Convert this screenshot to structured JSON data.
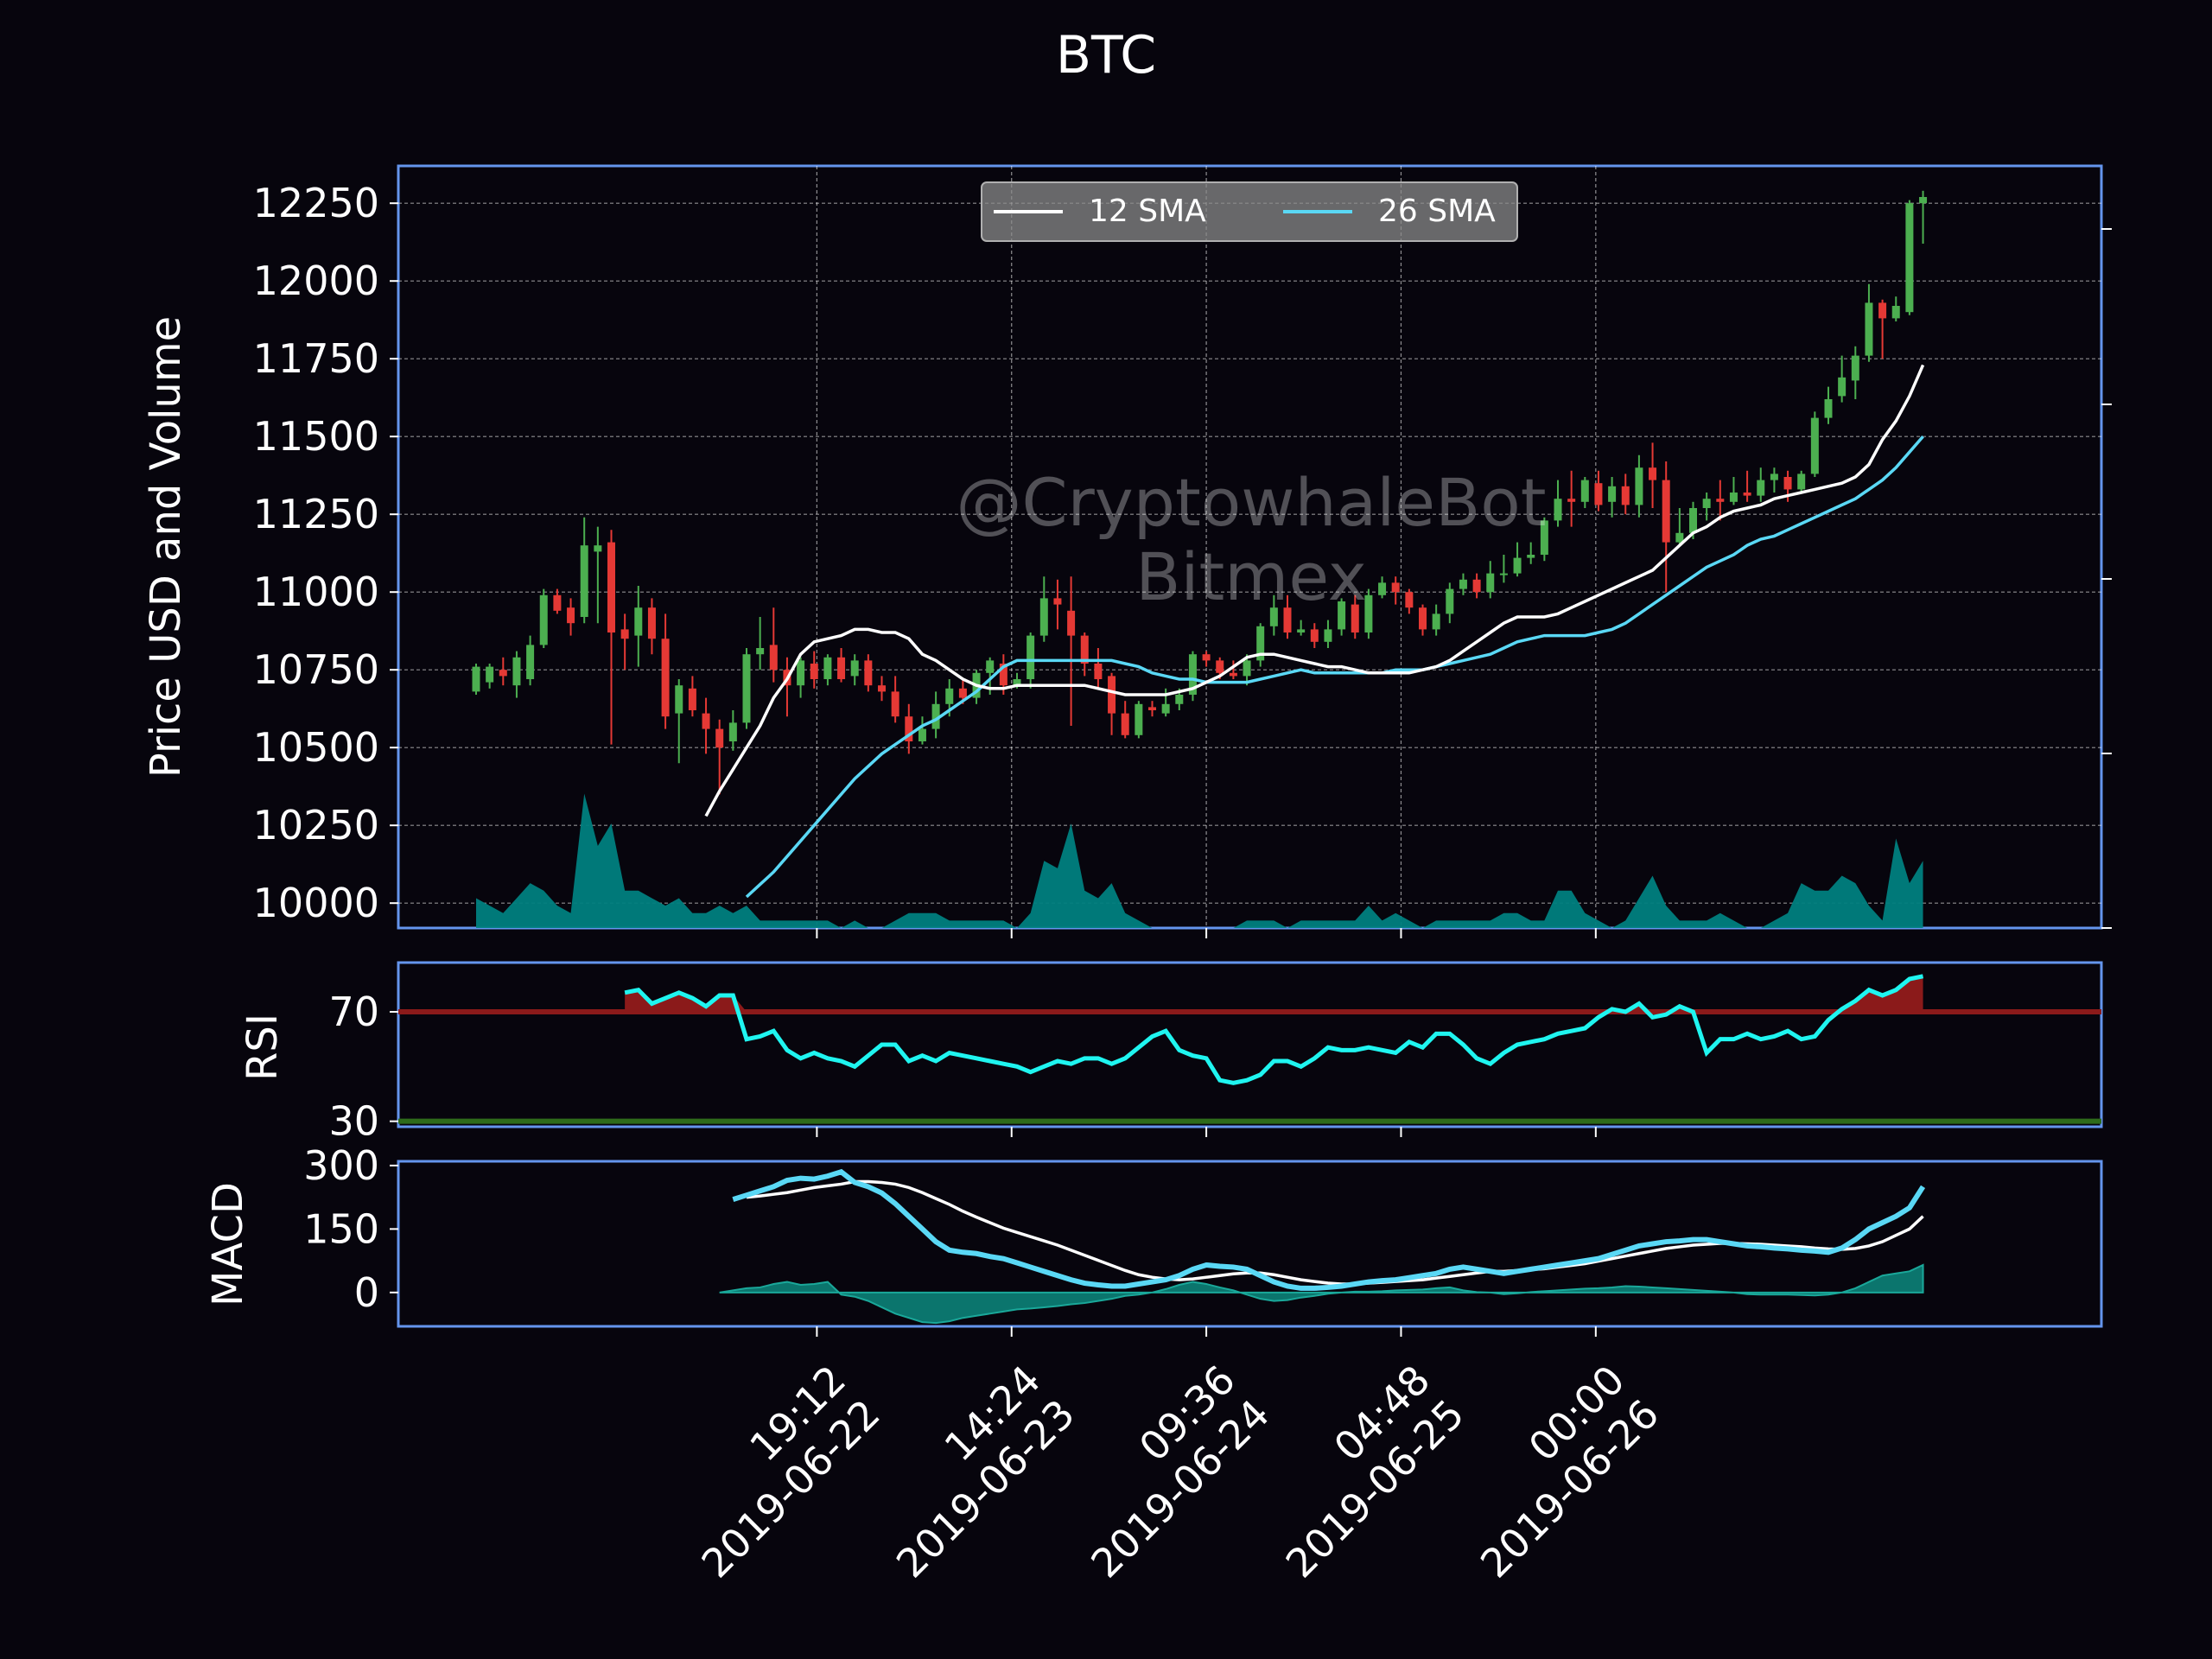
{
  "title": "BTC",
  "watermark": {
    "line1": "@CryptowhaleBot",
    "line2": "Bitmex"
  },
  "colors": {
    "background": "#07050d",
    "frame": "#6495ed",
    "up": "#4caf50",
    "down": "#e53935",
    "sma12": "#ffffff",
    "sma26": "#5ad8f5",
    "volume": "#008080",
    "rsi_line": "#1ff5f0",
    "rsi_overbought": "#8b1a1a",
    "rsi_oversold": "#2e6b1a",
    "macd_line": "#5ad8f5",
    "signal_line": "#ffffff",
    "hist": "#0c8a7f"
  },
  "chart_data": [
    {
      "type": "candlestick",
      "name": "price",
      "ylabel": "Price USD and Volume",
      "ylim": [
        9920,
        12370
      ],
      "yticks": [
        10000,
        10250,
        10500,
        10750,
        11000,
        11250,
        11500,
        11750,
        12000,
        12250
      ],
      "grid": true,
      "legend": {
        "placement": "top-center",
        "entries": [
          "12 SMA",
          "26 SMA"
        ]
      },
      "x_start": "2019-06-21 18:00",
      "interval_hours": 1,
      "candles": [
        [
          10680,
          10760,
          10670,
          10770
        ],
        [
          10710,
          10760,
          10690,
          10770
        ],
        [
          10750,
          10730,
          10700,
          10790
        ],
        [
          10700,
          10790,
          10660,
          10810
        ],
        [
          10720,
          10830,
          10700,
          10860
        ],
        [
          10830,
          10990,
          10820,
          11010
        ],
        [
          10990,
          10940,
          10930,
          11010
        ],
        [
          10950,
          10900,
          10860,
          10980
        ],
        [
          10920,
          11150,
          10900,
          11240
        ],
        [
          11130,
          11150,
          10900,
          11210
        ],
        [
          11160,
          10870,
          10510,
          11200
        ],
        [
          10880,
          10850,
          10750,
          10930
        ],
        [
          10860,
          10950,
          10760,
          11020
        ],
        [
          10950,
          10850,
          10800,
          10980
        ],
        [
          10850,
          10600,
          10560,
          10930
        ],
        [
          10610,
          10700,
          10450,
          10720
        ],
        [
          10690,
          10620,
          10600,
          10730
        ],
        [
          10610,
          10560,
          10480,
          10660
        ],
        [
          10560,
          10500,
          10350,
          10590
        ],
        [
          10520,
          10580,
          10490,
          10620
        ],
        [
          10580,
          10800,
          10560,
          10820
        ],
        [
          10800,
          10820,
          10750,
          10920
        ],
        [
          10830,
          10750,
          10710,
          10950
        ],
        [
          10750,
          10700,
          10600,
          10790
        ],
        [
          10700,
          10780,
          10660,
          10790
        ],
        [
          10770,
          10720,
          10690,
          10810
        ],
        [
          10720,
          10790,
          10700,
          10800
        ],
        [
          10790,
          10720,
          10710,
          10820
        ],
        [
          10730,
          10780,
          10700,
          10800
        ],
        [
          10780,
          10700,
          10680,
          10800
        ],
        [
          10700,
          10680,
          10650,
          10730
        ],
        [
          10680,
          10600,
          10580,
          10730
        ],
        [
          10600,
          10520,
          10480,
          10640
        ],
        [
          10520,
          10560,
          10510,
          10600
        ],
        [
          10560,
          10640,
          10530,
          10680
        ],
        [
          10640,
          10690,
          10600,
          10720
        ],
        [
          10690,
          10660,
          10640,
          10720
        ],
        [
          10660,
          10740,
          10640,
          10750
        ],
        [
          10740,
          10780,
          10670,
          10790
        ],
        [
          10770,
          10700,
          10670,
          10800
        ],
        [
          10700,
          10720,
          10690,
          10740
        ],
        [
          10720,
          10860,
          10690,
          10870
        ],
        [
          10860,
          10980,
          10840,
          11050
        ],
        [
          10980,
          10960,
          10880,
          11040
        ],
        [
          10940,
          10860,
          10570,
          11050
        ],
        [
          10860,
          10770,
          10730,
          10870
        ],
        [
          10770,
          10720,
          10690,
          10820
        ],
        [
          10730,
          10610,
          10540,
          10740
        ],
        [
          10610,
          10540,
          10530,
          10650
        ],
        [
          10540,
          10640,
          10530,
          10650
        ],
        [
          10630,
          10620,
          10600,
          10650
        ],
        [
          10610,
          10640,
          10600,
          10690
        ],
        [
          10640,
          10670,
          10620,
          10690
        ],
        [
          10670,
          10800,
          10650,
          10810
        ],
        [
          10800,
          10780,
          10760,
          10810
        ],
        [
          10780,
          10740,
          10720,
          10790
        ],
        [
          10740,
          10730,
          10720,
          10780
        ],
        [
          10730,
          10780,
          10700,
          10800
        ],
        [
          10780,
          10890,
          10760,
          10900
        ],
        [
          10890,
          10950,
          10860,
          10990
        ],
        [
          10950,
          10870,
          10850,
          10990
        ],
        [
          10870,
          10880,
          10860,
          10910
        ],
        [
          10880,
          10840,
          10820,
          10900
        ],
        [
          10840,
          10880,
          10820,
          10910
        ],
        [
          10880,
          10970,
          10860,
          10980
        ],
        [
          10960,
          10870,
          10850,
          10990
        ],
        [
          10870,
          10990,
          10850,
          11010
        ],
        [
          10990,
          11030,
          10980,
          11050
        ],
        [
          11030,
          11000,
          10960,
          11050
        ],
        [
          11000,
          10950,
          10930,
          11010
        ],
        [
          10950,
          10880,
          10860,
          10960
        ],
        [
          10880,
          10930,
          10860,
          10960
        ],
        [
          10930,
          11010,
          10900,
          11030
        ],
        [
          11010,
          11040,
          10990,
          11060
        ],
        [
          11040,
          11000,
          10980,
          11060
        ],
        [
          11000,
          11060,
          10980,
          11100
        ],
        [
          11060,
          11060,
          11030,
          11120
        ],
        [
          11060,
          11110,
          11050,
          11160
        ],
        [
          11110,
          11120,
          11090,
          11160
        ],
        [
          11120,
          11230,
          11100,
          11240
        ],
        [
          11230,
          11300,
          11210,
          11360
        ],
        [
          11300,
          11290,
          11210,
          11390
        ],
        [
          11290,
          11360,
          11270,
          11370
        ],
        [
          11350,
          11280,
          11260,
          11390
        ],
        [
          11290,
          11340,
          11240,
          11370
        ],
        [
          11340,
          11280,
          11250,
          11380
        ],
        [
          11280,
          11400,
          11240,
          11440
        ],
        [
          11400,
          11360,
          11270,
          11480
        ],
        [
          11360,
          11160,
          11000,
          11420
        ],
        [
          11160,
          11190,
          11150,
          11270
        ],
        [
          11190,
          11270,
          11170,
          11290
        ],
        [
          11270,
          11300,
          11230,
          11320
        ],
        [
          11300,
          11290,
          11230,
          11360
        ],
        [
          11290,
          11320,
          11280,
          11370
        ],
        [
          11320,
          11310,
          11290,
          11390
        ],
        [
          11310,
          11360,
          11290,
          11400
        ],
        [
          11360,
          11380,
          11320,
          11400
        ],
        [
          11370,
          11330,
          11290,
          11390
        ],
        [
          11330,
          11380,
          11320,
          11390
        ],
        [
          11380,
          11560,
          11370,
          11580
        ],
        [
          11560,
          11620,
          11540,
          11660
        ],
        [
          11630,
          11690,
          11610,
          11760
        ],
        [
          11680,
          11760,
          11620,
          11790
        ],
        [
          11760,
          11930,
          11740,
          11990
        ],
        [
          11930,
          11880,
          11750,
          11940
        ],
        [
          11880,
          11920,
          11870,
          11950
        ],
        [
          11900,
          12250,
          11890,
          12260
        ],
        [
          12250,
          12270,
          12120,
          12290
        ]
      ],
      "sma12": [
        10280,
        10360,
        10430,
        10500,
        10570,
        10660,
        10720,
        10800,
        10840,
        10850,
        10860,
        10880,
        10880,
        10870,
        10870,
        10850,
        10800,
        10780,
        10750,
        10720,
        10700,
        10690,
        10690,
        10700,
        10700,
        10700,
        10700,
        10700,
        10700,
        10690,
        10680,
        10670,
        10670,
        10670,
        10670,
        10680,
        10690,
        10710,
        10730,
        10760,
        10790,
        10800,
        10800,
        10790,
        10780,
        10770,
        10760,
        10760,
        10750,
        10740,
        10740,
        10740,
        10740,
        10750,
        10760,
        10780,
        10810,
        10840,
        10870,
        10900,
        10920,
        10920,
        10920,
        10930,
        10950,
        10970,
        10990,
        11010,
        11030,
        11050,
        11070,
        11110,
        11150,
        11190,
        11210,
        11240,
        11260,
        11270,
        11280,
        11300,
        11310,
        11320,
        11330,
        11340,
        11350,
        11370,
        11410,
        11490,
        11550,
        11630,
        11730
      ],
      "sma26": [
        10020,
        10060,
        10100,
        10150,
        10200,
        10250,
        10300,
        10350,
        10400,
        10440,
        10480,
        10510,
        10540,
        10570,
        10590,
        10620,
        10650,
        10680,
        10720,
        10760,
        10780,
        10780,
        10780,
        10780,
        10780,
        10780,
        10780,
        10780,
        10770,
        10760,
        10740,
        10730,
        10720,
        10720,
        10710,
        10710,
        10710,
        10710,
        10720,
        10730,
        10740,
        10750,
        10740,
        10740,
        10740,
        10740,
        10740,
        10740,
        10750,
        10750,
        10750,
        10760,
        10770,
        10780,
        10790,
        10800,
        10820,
        10840,
        10850,
        10860,
        10860,
        10860,
        10860,
        10870,
        10880,
        10900,
        10930,
        10960,
        10990,
        11020,
        11050,
        11080,
        11100,
        11120,
        11150,
        11170,
        11180,
        11200,
        11220,
        11240,
        11260,
        11280,
        11300,
        11330,
        11360,
        11400,
        11450,
        11500
      ],
      "volume_ytop": 10400,
      "volume": [
        4,
        3,
        2,
        4,
        6,
        5,
        3,
        2,
        18,
        11,
        14,
        5,
        5,
        4,
        3,
        4,
        2,
        2,
        3,
        2,
        3,
        1,
        1,
        1,
        1,
        1,
        1,
        0,
        1,
        0,
        0,
        1,
        2,
        2,
        2,
        1,
        1,
        1,
        1,
        1,
        0,
        2,
        9,
        8,
        14,
        5,
        4,
        6,
        2,
        1,
        0,
        0,
        0,
        0,
        0,
        0,
        0,
        1,
        1,
        1,
        0,
        1,
        1,
        1,
        1,
        1,
        3,
        1,
        2,
        1,
        0,
        1,
        1,
        1,
        1,
        1,
        2,
        2,
        1,
        1,
        5,
        5,
        2,
        1,
        0,
        1,
        4,
        7,
        3,
        1,
        1,
        1,
        2,
        1,
        0,
        0,
        1,
        2,
        6,
        5,
        5,
        7,
        6,
        3,
        1,
        12,
        6,
        9,
        5
      ]
    },
    {
      "type": "line",
      "name": "rsi",
      "ylabel": "RSI",
      "ylim": [
        28,
        88
      ],
      "yticks": [
        30,
        70
      ],
      "thresholds": [
        70,
        30
      ],
      "values": [
        77,
        78,
        73,
        75,
        77,
        75,
        72,
        76,
        76,
        60,
        61,
        63,
        56,
        53,
        55,
        53,
        52,
        50,
        54,
        58,
        58,
        52,
        54,
        52,
        55,
        54,
        53,
        52,
        51,
        50,
        48,
        50,
        52,
        51,
        53,
        53,
        51,
        53,
        57,
        61,
        63,
        56,
        54,
        53,
        45,
        44,
        45,
        47,
        52,
        52,
        50,
        53,
        57,
        56,
        56,
        57,
        56,
        55,
        59,
        57,
        62,
        62,
        58,
        53,
        51,
        55,
        58,
        59,
        60,
        62,
        63,
        64,
        68,
        71,
        70,
        73,
        68,
        69,
        72,
        70,
        55,
        60,
        60,
        62,
        60,
        61,
        63,
        60,
        61,
        67,
        71,
        74,
        78,
        76,
        78,
        82,
        83
      ]
    },
    {
      "type": "line",
      "name": "macd",
      "ylabel": "MACD",
      "ylim": [
        -80,
        310
      ],
      "yticks": [
        0,
        150,
        300
      ],
      "macd": [
        220,
        230,
        240,
        250,
        265,
        270,
        268,
        275,
        285,
        260,
        250,
        235,
        210,
        180,
        150,
        120,
        100,
        95,
        92,
        85,
        80,
        70,
        60,
        50,
        40,
        30,
        22,
        18,
        15,
        15,
        20,
        25,
        30,
        40,
        55,
        65,
        62,
        60,
        55,
        40,
        25,
        15,
        10,
        10,
        12,
        15,
        20,
        25,
        28,
        30,
        35,
        40,
        45,
        55,
        60,
        55,
        50,
        45,
        50,
        55,
        60,
        65,
        70,
        75,
        80,
        90,
        100,
        110,
        115,
        120,
        122,
        125,
        125,
        120,
        115,
        110,
        108,
        105,
        103,
        100,
        98,
        95,
        105,
        125,
        150,
        165,
        180,
        200,
        250
      ],
      "signal": [
        225,
        228,
        232,
        236,
        242,
        248,
        252,
        256,
        262,
        262,
        260,
        256,
        248,
        236,
        222,
        208,
        192,
        178,
        165,
        152,
        142,
        132,
        122,
        112,
        100,
        88,
        76,
        64,
        52,
        42,
        36,
        32,
        30,
        32,
        36,
        40,
        44,
        46,
        46,
        42,
        36,
        30,
        26,
        22,
        20,
        20,
        22,
        24,
        26,
        28,
        30,
        34,
        38,
        42,
        46,
        50,
        50,
        52,
        54,
        56,
        60,
        64,
        68,
        74,
        80,
        86,
        92,
        98,
        104,
        108,
        112,
        114,
        116,
        116,
        115,
        114,
        112,
        110,
        108,
        105,
        103,
        102,
        104,
        110,
        120,
        135,
        150,
        180
      ],
      "hist": [
        0,
        5,
        10,
        12,
        20,
        25,
        18,
        20,
        25,
        -5,
        -10,
        -20,
        -35,
        -50,
        -60,
        -70,
        -72,
        -68,
        -60,
        -55,
        -50,
        -45,
        -40,
        -38,
        -35,
        -32,
        -28,
        -25,
        -20,
        -15,
        -8,
        -5,
        0,
        8,
        18,
        25,
        20,
        12,
        5,
        -5,
        -15,
        -20,
        -18,
        -12,
        -8,
        -3,
        0,
        2,
        2,
        3,
        5,
        6,
        7,
        10,
        12,
        5,
        1,
        0,
        -4,
        -2,
        1,
        3,
        5,
        7,
        9,
        10,
        12,
        15,
        14,
        12,
        10,
        8,
        6,
        4,
        2,
        0,
        -4,
        -5,
        -5,
        -5,
        -6,
        -7,
        -5,
        0,
        10,
        25,
        40,
        45,
        50,
        65
      ]
    }
  ],
  "x_axis": {
    "ticks": [
      {
        "time": "19:12",
        "date": "2019-06-22"
      },
      {
        "time": "14:24",
        "date": "2019-06-23"
      },
      {
        "time": "09:36",
        "date": "2019-06-24"
      },
      {
        "time": "04:48",
        "date": "2019-06-25"
      },
      {
        "time": "00:00",
        "date": "2019-06-26"
      }
    ]
  }
}
